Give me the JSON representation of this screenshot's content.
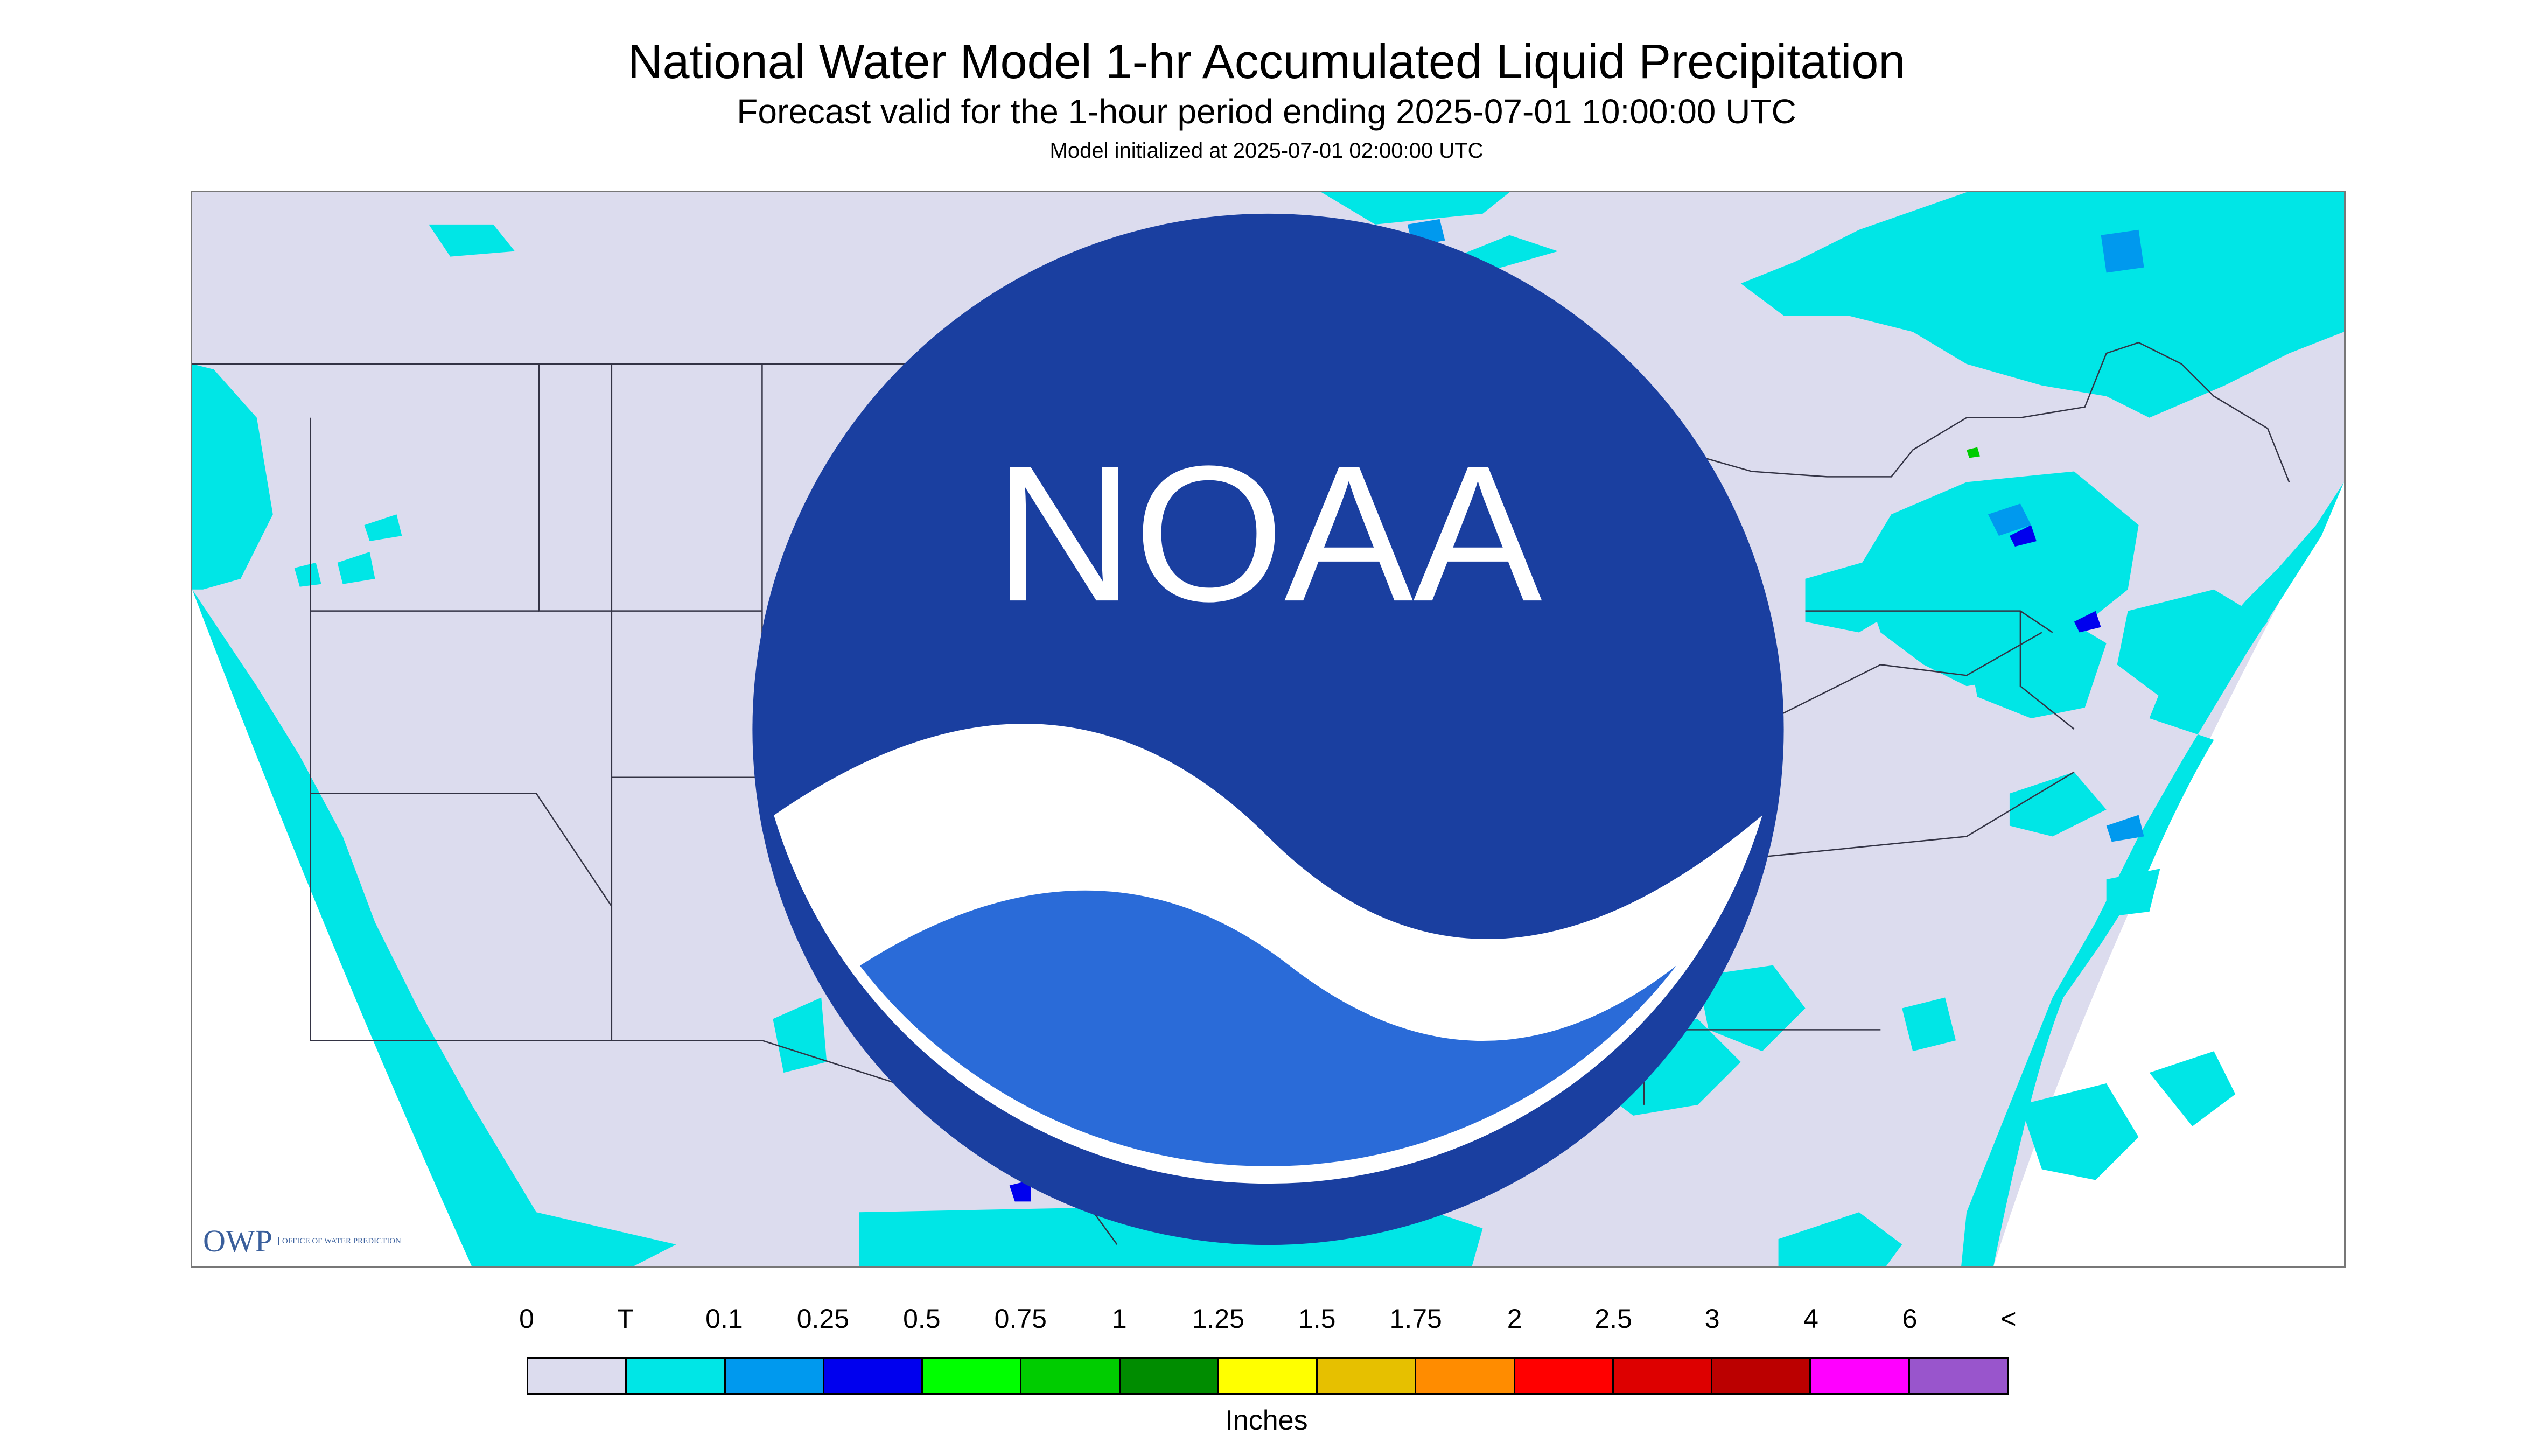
{
  "header": {
    "title": "National Water Model 1-hr Accumulated Liquid Precipitation",
    "subtitle": "Forecast valid for the 1-hour period ending 2025-07-01 10:00:00 UTC",
    "init": "Model initialized at 2025-07-01 02:00:00 UTC"
  },
  "map": {
    "background_color": "#dcdcee",
    "trace_color": "#00e6e6",
    "light_blue_color": "#0099ee",
    "dark_blue_color": "#0000ee",
    "green_color": "#00cc00",
    "border_color": "#333344",
    "logos": {
      "owp_text": "OWP",
      "owp_small": "OFFICE OF WATER PREDICTION",
      "noaa_text": "NOAA"
    }
  },
  "legend": {
    "labels": [
      "0",
      "T",
      "0.1",
      "0.25",
      "0.5",
      "0.75",
      "1",
      "1.25",
      "1.5",
      "1.75",
      "2",
      "2.5",
      "3",
      "4",
      "6",
      "<"
    ],
    "colors": [
      "#dcdcee",
      "#00e6e6",
      "#0099ee",
      "#0000ee",
      "#00ff00",
      "#00cc00",
      "#008c00",
      "#ffff00",
      "#e6c000",
      "#ff8c00",
      "#ff0000",
      "#dd0000",
      "#bb0000",
      "#ff00ff",
      "#9955cc"
    ],
    "units": "Inches"
  }
}
